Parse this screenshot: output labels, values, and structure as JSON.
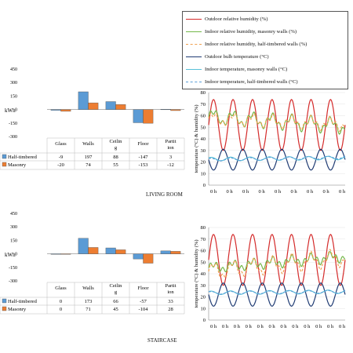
{
  "legend": {
    "items": [
      {
        "label": "Outdoor relative humidity (%)",
        "color": "#d42a2a",
        "dash": false
      },
      {
        "label": "Indoor relative humidity, masonry walls (%)",
        "color": "#74b84a",
        "dash": false
      },
      {
        "label": "Indoor relative humidity, half-timbered walls (%)",
        "color": "#f0a050",
        "dash": true
      },
      {
        "label": "Outdoor bulb temperature (°C)",
        "color": "#1f3b73",
        "dash": false
      },
      {
        "label": "Indoor temperature, masonry walls (°C)",
        "color": "#58c0d8",
        "dash": false
      },
      {
        "label": "Indoor temperature, half-timbered walls (°C)",
        "color": "#5a9fd8",
        "dash": true
      }
    ]
  },
  "chart_data": [
    {
      "type": "bar",
      "section": "LIVING ROOM",
      "categories": [
        "Glass",
        "Walls",
        "Ceiling",
        "Floor",
        "Partition"
      ],
      "category_display": [
        "Glass",
        "Walls",
        "Ceilin\ng",
        "Floor",
        "Partit\nion"
      ],
      "ylabel": "kWh",
      "ylim": [
        -300,
        450
      ],
      "yticks": [
        "450",
        "300",
        "150",
        "0",
        "-150",
        "-300"
      ],
      "series": [
        {
          "name": "Half-timbered",
          "color": "#5b9bd5",
          "values": [
            -9,
            197,
            88,
            -147,
            3
          ]
        },
        {
          "name": "Masonry",
          "color": "#ed7d31",
          "values": [
            -20,
            74,
            55,
            -153,
            -12
          ]
        }
      ],
      "table": [
        [
          "-9",
          "197",
          "88",
          "-147",
          "3"
        ],
        [
          "-20",
          "74",
          "55",
          "-153",
          "-12"
        ]
      ]
    },
    {
      "type": "bar",
      "section": "STAIRCASE",
      "categories": [
        "Glass",
        "Walls",
        "Ceiling",
        "Floor",
        "Partition"
      ],
      "category_display": [
        "Glass",
        "Walls",
        "Ceilin\ng",
        "Floor",
        "Partit\nion"
      ],
      "ylabel": "kWh",
      "ylim": [
        -300,
        450
      ],
      "yticks": [
        "450",
        "300",
        "150",
        "0",
        "-150",
        "-300"
      ],
      "series": [
        {
          "name": "Half-timbered",
          "color": "#5b9bd5",
          "values": [
            0,
            173,
            66,
            -57,
            33
          ]
        },
        {
          "name": "Masonry",
          "color": "#ed7d31",
          "values": [
            0,
            71,
            45,
            -104,
            28
          ]
        }
      ],
      "table": [
        [
          "0",
          "173",
          "66",
          "-57",
          "33"
        ],
        [
          "0",
          "71",
          "45",
          "-104",
          "28"
        ]
      ]
    },
    {
      "type": "line",
      "section": "LIVING ROOM",
      "ylabel": "temperature (°C) & humidity (%)",
      "ylim": [
        0,
        80
      ],
      "yticks": [
        "80",
        "70",
        "60",
        "50",
        "40",
        "30",
        "20",
        "10",
        "0"
      ],
      "xticks": [
        "0 h",
        "0 h",
        "0 h",
        "0 h",
        "0 h",
        "0 h",
        "0 h",
        "0 h",
        "0 h"
      ],
      "series": [
        {
          "name": "Outdoor relative humidity (%)",
          "color": "#d42a2a",
          "dash": false,
          "base": 52,
          "amp": 22,
          "period": 1,
          "trend": 0
        },
        {
          "name": "Indoor relative humidity, masonry walls (%)",
          "color": "#74b84a",
          "dash": false,
          "base": 55,
          "amp": 5,
          "period": 1,
          "trend": -8
        },
        {
          "name": "Indoor relative humidity, half-timbered walls (%)",
          "color": "#f0a050",
          "dash": true,
          "base": 55,
          "amp": 4,
          "period": 1,
          "trend": -5
        },
        {
          "name": "Outdoor bulb temperature (°C)",
          "color": "#1f3b73",
          "dash": false,
          "base": 22,
          "amp": 9,
          "period": 1,
          "trend": 0
        },
        {
          "name": "Indoor temperature, masonry walls (°C)",
          "color": "#58c0d8",
          "dash": false,
          "base": 23,
          "amp": 1.5,
          "period": 1,
          "trend": 1
        },
        {
          "name": "Indoor temperature, half-timbered walls (°C)",
          "color": "#5a9fd8",
          "dash": true,
          "base": 23,
          "amp": 1.2,
          "period": 1,
          "trend": 2
        }
      ]
    },
    {
      "type": "line",
      "section": "STAIRCASE",
      "ylabel": "temperature (°C) & humidity (%)",
      "ylim": [
        0,
        80
      ],
      "yticks": [
        "80",
        "70",
        "60",
        "50",
        "40",
        "30",
        "20",
        "10",
        "0"
      ],
      "xticks": [
        "0 h",
        "0 h",
        "0 h",
        "0 h",
        "0 h",
        "0 h",
        "0 h",
        "0 h",
        "0 h",
        "0 h",
        "0 h",
        "0 h"
      ],
      "series": [
        {
          "name": "Outdoor relative humidity (%)",
          "color": "#d42a2a",
          "dash": false,
          "base": 52,
          "amp": 22,
          "period": 1,
          "trend": 0
        },
        {
          "name": "Indoor relative humidity, masonry walls (%)",
          "color": "#74b84a",
          "dash": false,
          "base": 50,
          "amp": 3,
          "period": 1,
          "trend": 10
        },
        {
          "name": "Indoor relative humidity, half-timbered walls (%)",
          "color": "#f0a050",
          "dash": true,
          "base": 48,
          "amp": 6,
          "period": 1,
          "trend": 12
        },
        {
          "name": "Outdoor bulb temperature (°C)",
          "color": "#1f3b73",
          "dash": false,
          "base": 22,
          "amp": 10,
          "period": 1,
          "trend": 0
        },
        {
          "name": "Indoor temperature, masonry walls (°C)",
          "color": "#58c0d8",
          "dash": false,
          "base": 24,
          "amp": 1.5,
          "period": 1,
          "trend": 1
        },
        {
          "name": "Indoor temperature, half-timbered walls (°C)",
          "color": "#5a9fd8",
          "dash": true,
          "base": 24,
          "amp": 1.2,
          "period": 1,
          "trend": 1
        }
      ]
    }
  ]
}
